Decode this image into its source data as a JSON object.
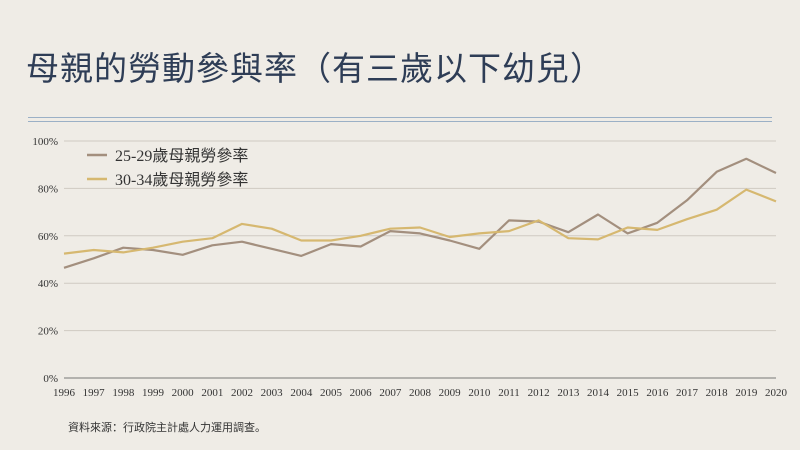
{
  "title": "母親的勞動參與率（有三歲以下幼兒）",
  "source": "資料來源：行政院主計處人力運用調查。",
  "chart_data": {
    "type": "line",
    "title": "母親的勞動參與率（有三歲以下幼兒）",
    "x": [
      "1996",
      "1997",
      "1998",
      "1999",
      "2000",
      "2001",
      "2002",
      "2003",
      "2004",
      "2005",
      "2006",
      "2007",
      "2008",
      "2009",
      "2010",
      "2011",
      "2012",
      "2013",
      "2014",
      "2015",
      "2016",
      "2017",
      "2018",
      "2019",
      "2020"
    ],
    "ylim": [
      0,
      100
    ],
    "yticks": [
      "0%",
      "20%",
      "40%",
      "60%",
      "80%",
      "100%"
    ],
    "ytick_values": [
      0,
      20,
      40,
      60,
      80,
      100
    ],
    "grid": true,
    "legend_position": "top-left",
    "series": [
      {
        "name": "25-29歲母親勞參率",
        "color": "#a38f7e",
        "values": [
          46.5,
          50.5,
          55,
          54,
          52,
          56,
          57.5,
          54.5,
          51.5,
          56.5,
          55.5,
          62,
          61,
          58,
          54.5,
          66.5,
          66,
          61.5,
          69,
          61,
          65.5,
          75,
          87,
          92.5,
          86.5
        ]
      },
      {
        "name": "30-34歲母親勞參率",
        "color": "#d6b870",
        "values": [
          52.5,
          54,
          53,
          55,
          57.5,
          59,
          65,
          63,
          58,
          58,
          60,
          63,
          63.5,
          59.5,
          61,
          62,
          66.5,
          59,
          58.5,
          63.5,
          62.5,
          67,
          71,
          79.5,
          74.5
        ]
      }
    ]
  }
}
